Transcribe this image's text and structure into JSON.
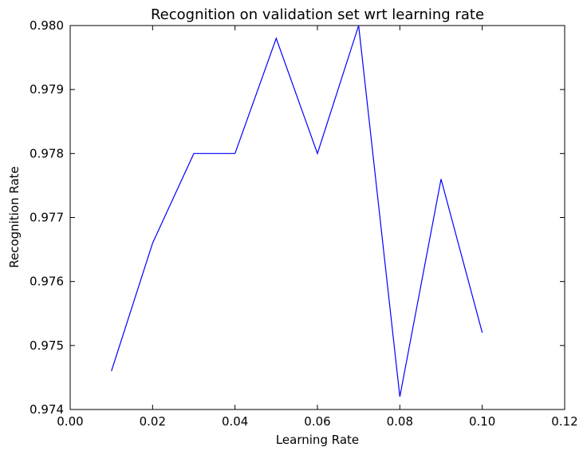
{
  "chart_data": {
    "type": "line",
    "title": "Recognition on validation set wrt learning rate",
    "xlabel": "Learning Rate",
    "ylabel": "Recognition Rate",
    "xlim": [
      0.0,
      0.12
    ],
    "ylim": [
      0.974,
      0.98
    ],
    "xticks": [
      "0.00",
      "0.02",
      "0.04",
      "0.06",
      "0.08",
      "0.10",
      "0.12"
    ],
    "yticks": [
      "0.974",
      "0.975",
      "0.976",
      "0.977",
      "0.978",
      "0.979",
      "0.980"
    ],
    "grid": false,
    "series": [
      {
        "color": "#0000ff",
        "x": [
          0.01,
          0.02,
          0.03,
          0.04,
          0.05,
          0.06,
          0.07,
          0.08,
          0.09,
          0.1
        ],
        "y": [
          0.9746,
          0.9766,
          0.978,
          0.978,
          0.9798,
          0.978,
          0.98,
          0.9742,
          0.9776,
          0.9752
        ]
      }
    ]
  }
}
